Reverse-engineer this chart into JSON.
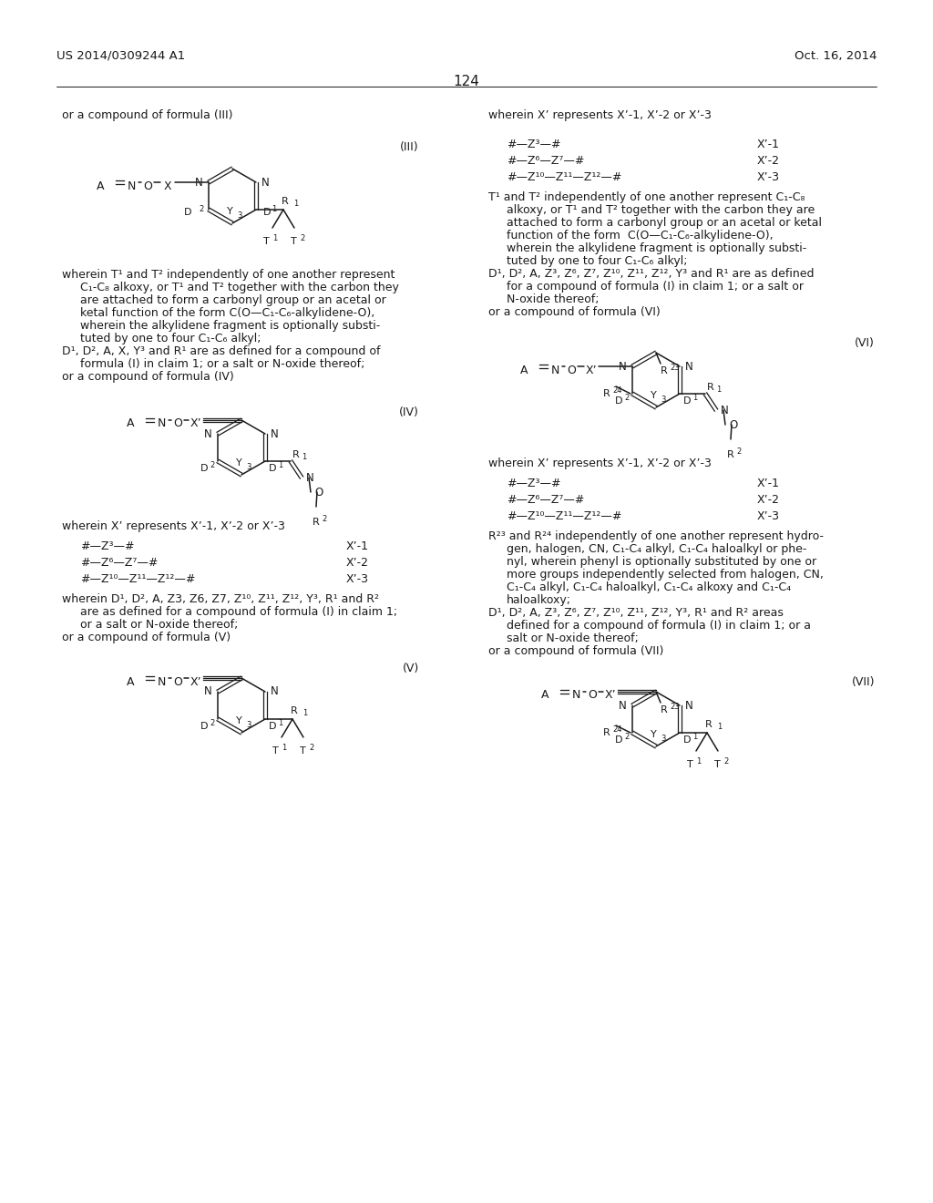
{
  "header_left": "US 2014/0309244 A1",
  "header_right": "Oct. 16, 2014",
  "page_number": "124",
  "bg": "#ffffff",
  "ink": "#1a1a1a"
}
